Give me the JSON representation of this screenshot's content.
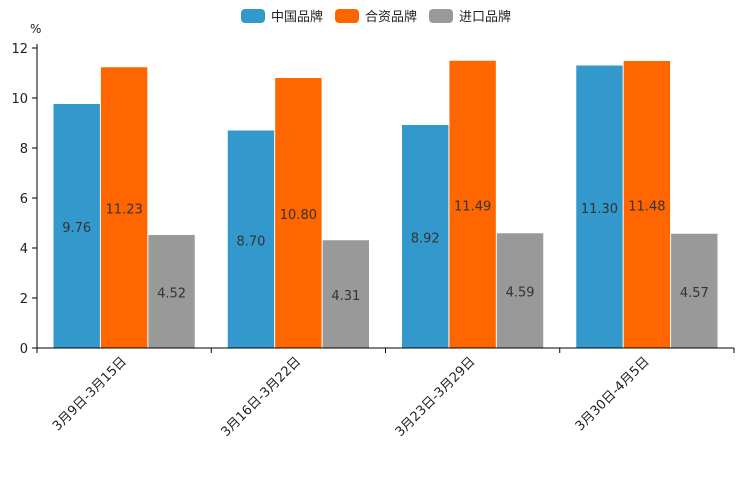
{
  "chart_data": {
    "type": "bar",
    "title": "",
    "xlabel": "",
    "ylabel": "%",
    "ylim": [
      0,
      12
    ],
    "yticks": [
      0,
      2,
      4,
      6,
      8,
      10,
      12
    ],
    "grid": false,
    "legend_position": "top-center",
    "categories": [
      "3月9日-3月15日",
      "3月16日-3月22日",
      "3月23日-3月29日",
      "3月30日-4月5日"
    ],
    "series": [
      {
        "name": "中国品牌",
        "color": "#3399cc",
        "values": [
          9.76,
          8.7,
          8.92,
          11.3
        ],
        "labels": [
          "9.76",
          "8.70",
          "8.92",
          "11.30"
        ]
      },
      {
        "name": "合资品牌",
        "color": "#ff6600",
        "values": [
          11.23,
          10.8,
          11.49,
          11.48
        ],
        "labels": [
          "11.23",
          "10.80",
          "11.49",
          "11.48"
        ]
      },
      {
        "name": "进口品牌",
        "color": "#999999",
        "values": [
          4.52,
          4.31,
          4.59,
          4.57
        ],
        "labels": [
          "4.52",
          "4.31",
          "4.59",
          "4.57"
        ]
      }
    ]
  }
}
